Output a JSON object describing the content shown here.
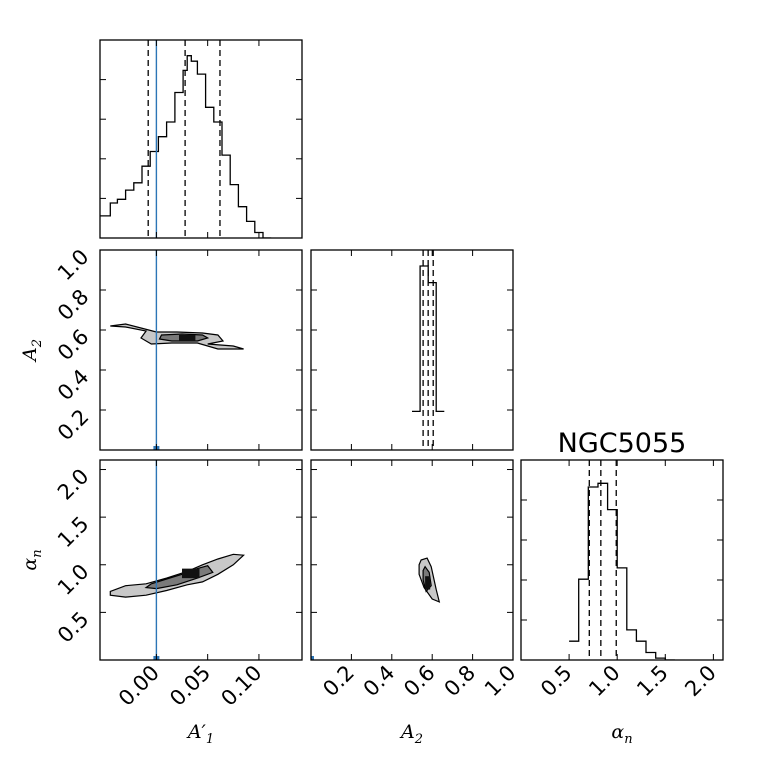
{
  "chart_data": {
    "type": "corner",
    "title": "NGC5055",
    "parameters": [
      {
        "key": "A1p",
        "label": "A′",
        "label_sub": "1",
        "range": [
          -0.055,
          0.142
        ],
        "ticks": [
          0.0,
          0.05,
          0.1
        ],
        "tick_labels": [
          "0.00",
          "0.05",
          "0.10"
        ]
      },
      {
        "key": "A2",
        "label": "A",
        "label_sub": "2",
        "range": [
          0.0,
          1.0
        ],
        "ticks": [
          0.2,
          0.4,
          0.6,
          0.8,
          1.0
        ],
        "tick_labels": [
          "0.2",
          "0.4",
          "0.6",
          "0.8",
          "1.0"
        ]
      },
      {
        "key": "alpha_n",
        "label": "α",
        "label_sub": "n",
        "range": [
          0.0,
          2.1
        ],
        "ticks": [
          0.5,
          1.0,
          1.5,
          2.0
        ],
        "tick_labels": [
          "0.5",
          "1.0",
          "1.5",
          "2.0"
        ]
      }
    ],
    "truth": {
      "A1p": 0.0
    },
    "histograms": {
      "A1p": {
        "edges": [
          -0.055,
          -0.045,
          -0.038,
          -0.03,
          -0.022,
          -0.014,
          -0.006,
          0.002,
          0.01,
          0.018,
          0.026,
          0.03,
          0.034,
          0.04,
          0.048,
          0.056,
          0.064,
          0.072,
          0.08,
          0.088,
          0.096,
          0.104,
          0.112
        ],
        "counts": [
          0.12,
          0.19,
          0.21,
          0.26,
          0.3,
          0.39,
          0.47,
          0.55,
          0.63,
          0.79,
          0.91,
          0.99,
          0.96,
          0.89,
          0.71,
          0.63,
          0.45,
          0.29,
          0.17,
          0.09,
          0.03,
          0.0
        ],
        "quantiles": [
          -0.008,
          0.028,
          0.062
        ]
      },
      "A2": {
        "edges": [
          0.5,
          0.54,
          0.58,
          0.62,
          0.66
        ],
        "counts": [
          0.21,
          1.0,
          0.91,
          0.21
        ],
        "quantiles": [
          0.555,
          0.58,
          0.605
        ]
      },
      "alpha_n": {
        "edges": [
          0.5,
          0.6,
          0.7,
          0.8,
          0.9,
          1.0,
          1.1,
          1.2,
          1.3,
          1.4,
          1.5,
          1.6
        ],
        "counts": [
          0.1,
          0.43,
          0.92,
          0.94,
          0.8,
          0.49,
          0.16,
          0.1,
          0.04,
          0.01,
          0.0
        ],
        "quantiles": [
          0.71,
          0.83,
          0.99
        ]
      }
    },
    "density_2d": [
      {
        "x": "A1p",
        "y": "A2",
        "contours": [
          [
            [
              -0.045,
              0.62
            ],
            [
              -0.03,
              0.63
            ],
            [
              -0.015,
              0.61
            ],
            [
              0.0,
              0.59
            ],
            [
              0.02,
              0.59
            ],
            [
              0.045,
              0.585
            ],
            [
              0.06,
              0.575
            ],
            [
              0.065,
              0.545
            ],
            [
              0.05,
              0.53
            ],
            [
              0.075,
              0.52
            ],
            [
              0.085,
              0.505
            ],
            [
              0.06,
              0.505
            ],
            [
              0.04,
              0.535
            ],
            [
              0.015,
              0.535
            ],
            [
              -0.005,
              0.53
            ],
            [
              -0.015,
              0.56
            ],
            [
              -0.01,
              0.595
            ],
            [
              -0.03,
              0.615
            ]
          ],
          [
            [
              0.005,
              0.575
            ],
            [
              0.025,
              0.58
            ],
            [
              0.045,
              0.575
            ],
            [
              0.05,
              0.56
            ],
            [
              0.04,
              0.545
            ],
            [
              0.015,
              0.545
            ],
            [
              0.003,
              0.555
            ]
          ]
        ],
        "core": [
          [
            0.022,
            0.575
          ],
          [
            0.038,
            0.575
          ],
          [
            0.038,
            0.545
          ],
          [
            0.022,
            0.545
          ]
        ]
      },
      {
        "x": "A1p",
        "y": "alpha_n",
        "contours": [
          [
            [
              -0.045,
              0.72
            ],
            [
              -0.03,
              0.78
            ],
            [
              -0.01,
              0.8
            ],
            [
              0.01,
              0.86
            ],
            [
              0.03,
              0.93
            ],
            [
              0.045,
              1.0
            ],
            [
              0.06,
              1.06
            ],
            [
              0.075,
              1.11
            ],
            [
              0.085,
              1.1
            ],
            [
              0.075,
              1.0
            ],
            [
              0.06,
              0.9
            ],
            [
              0.045,
              0.82
            ],
            [
              0.03,
              0.79
            ],
            [
              0.01,
              0.73
            ],
            [
              -0.01,
              0.68
            ],
            [
              -0.03,
              0.66
            ],
            [
              -0.045,
              0.68
            ]
          ],
          [
            [
              -0.005,
              0.8
            ],
            [
              0.01,
              0.85
            ],
            [
              0.025,
              0.9
            ],
            [
              0.04,
              0.96
            ],
            [
              0.05,
              0.99
            ],
            [
              0.055,
              0.92
            ],
            [
              0.04,
              0.86
            ],
            [
              0.02,
              0.79
            ],
            [
              0.0,
              0.75
            ],
            [
              -0.01,
              0.76
            ]
          ]
        ],
        "core": [
          [
            0.025,
            0.96
          ],
          [
            0.042,
            0.96
          ],
          [
            0.042,
            0.86
          ],
          [
            0.025,
            0.86
          ]
        ]
      },
      {
        "x": "A2",
        "y": "alpha_n",
        "contours": [
          [
            [
              0.545,
              1.05
            ],
            [
              0.575,
              1.07
            ],
            [
              0.595,
              0.98
            ],
            [
              0.62,
              0.74
            ],
            [
              0.635,
              0.61
            ],
            [
              0.6,
              0.64
            ],
            [
              0.56,
              0.76
            ],
            [
              0.535,
              0.9
            ],
            [
              0.535,
              1.0
            ]
          ],
          [
            [
              0.565,
              0.98
            ],
            [
              0.585,
              0.92
            ],
            [
              0.595,
              0.78
            ],
            [
              0.57,
              0.72
            ],
            [
              0.555,
              0.84
            ],
            [
              0.555,
              0.94
            ]
          ]
        ],
        "core": [
          [
            0.565,
            0.88
          ],
          [
            0.59,
            0.88
          ],
          [
            0.59,
            0.74
          ],
          [
            0.565,
            0.74
          ]
        ]
      }
    ]
  }
}
